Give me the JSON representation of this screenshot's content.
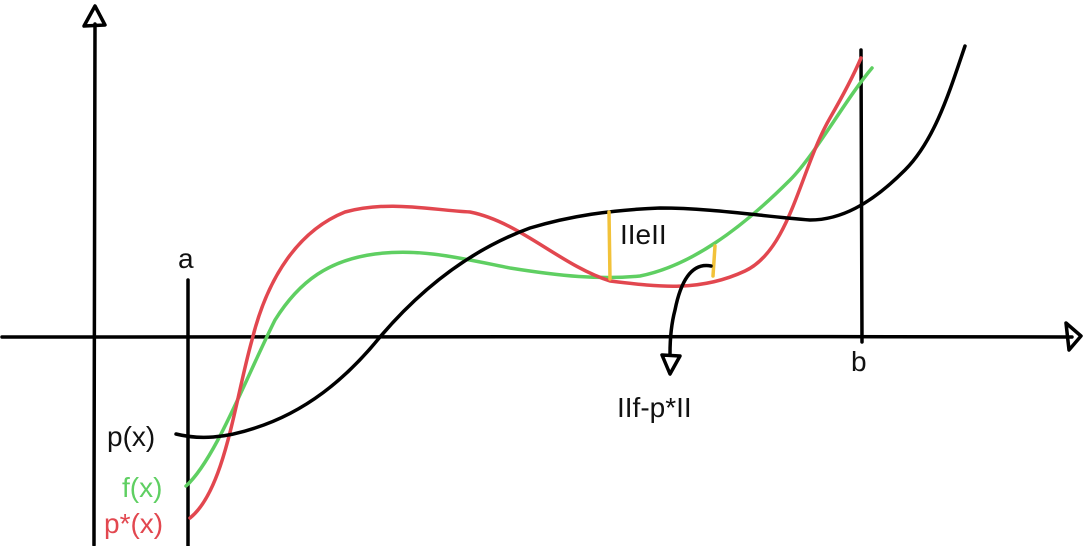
{
  "labels": {
    "a": "a",
    "b": "b",
    "p": "p(x)",
    "f": "f(x)",
    "pstar": "p*(x)",
    "e_norm": "IIeII",
    "f_minus_pstar_norm": "IIf-p*II"
  },
  "colors": {
    "axis": "#000000",
    "p_curve": "#000000",
    "f_curve": "#5fcf62",
    "pstar_curve": "#e2474f",
    "error_marker": "#f2c23a"
  }
}
